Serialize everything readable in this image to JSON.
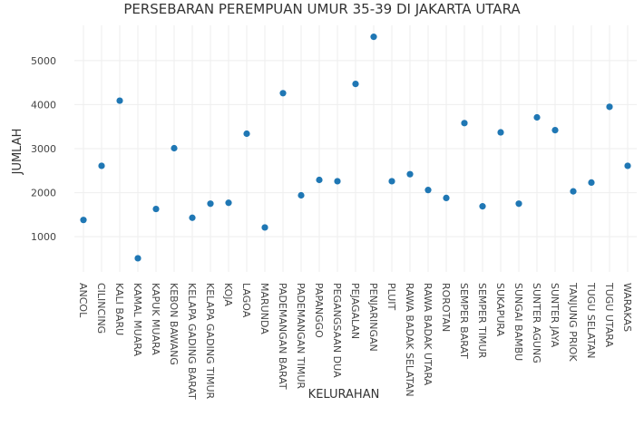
{
  "chart_data": {
    "type": "scatter",
    "title": "PERSEBARAN PEREMPUAN UMUR 35-39 DI JAKARTA UTARA",
    "xlabel": "KELURAHAN",
    "ylabel": "JUMLAH",
    "ylim": [
      200,
      5800
    ],
    "yticks": [
      1000,
      2000,
      3000,
      4000,
      5000
    ],
    "grid": true,
    "legend": "none",
    "marker_color": "#1f77b4",
    "categories": [
      "ANCOL",
      "CILINCING",
      "KALI BARU",
      "KAMAL MUARA",
      "KAPUK MUARA",
      "KEBON BAWANG",
      "KELAPA GADING BARAT",
      "KELAPA GADING TIMUR",
      "KOJA",
      "LAGOA",
      "MARUNDA",
      "PADEMANGAN BARAT",
      "PADEMANGAN TIMUR",
      "PAPANGGO",
      "PEGANGSAAN DUA",
      "PEJAGALAN",
      "PENJARINGAN",
      "PLUIT",
      "RAWA BADAK SELATAN",
      "RAWA BADAK UTARA",
      "ROROTAN",
      "SEMPER BARAT",
      "SEMPER TIMUR",
      "SUKAPURA",
      "SUNGAI BAMBU",
      "SUNTER AGUNG",
      "SUNTER JAYA",
      "TANJUNG PRIOK",
      "TUGU SELATAN",
      "TUGU UTARA",
      "WARAKAS"
    ],
    "values": [
      1380,
      2610,
      4090,
      510,
      1630,
      3010,
      1430,
      1750,
      1770,
      3340,
      1210,
      4260,
      1940,
      2290,
      2260,
      4470,
      5540,
      2260,
      2420,
      2060,
      1880,
      3580,
      1690,
      3370,
      1750,
      3710,
      3420,
      2030,
      2230,
      3950,
      2610
    ]
  }
}
